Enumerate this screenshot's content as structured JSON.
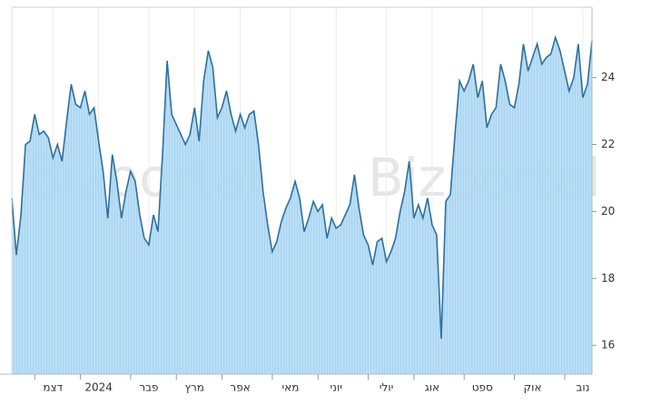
{
  "chart_data": {
    "type": "area",
    "watermark": "Bizportal",
    "categories": [
      null,
      null,
      null,
      null,
      null,
      null,
      null,
      null,
      null,
      "דצמ",
      null,
      null,
      null,
      null,
      null,
      null,
      null,
      null,
      null,
      "2024",
      null,
      null,
      null,
      null,
      null,
      null,
      null,
      null,
      null,
      null,
      "פבר",
      null,
      null,
      null,
      null,
      null,
      null,
      null,
      null,
      null,
      "מרץ",
      null,
      null,
      null,
      null,
      null,
      null,
      null,
      null,
      null,
      "אפר",
      null,
      null,
      null,
      null,
      null,
      null,
      null,
      null,
      null,
      null,
      "מאי",
      null,
      null,
      null,
      null,
      null,
      null,
      null,
      null,
      null,
      "יוני",
      null,
      null,
      null,
      null,
      null,
      null,
      null,
      null,
      null,
      null,
      "יולי",
      null,
      null,
      null,
      null,
      null,
      null,
      null,
      null,
      null,
      "אוג",
      null,
      null,
      null,
      null,
      null,
      null,
      null,
      null,
      null,
      null,
      "ספט",
      null,
      null,
      null,
      null,
      null,
      null,
      null,
      null,
      null,
      null,
      "אוק",
      null,
      null,
      null,
      null,
      null,
      null,
      null,
      null,
      null,
      null,
      "נוב",
      null,
      null
    ],
    "values": [
      20.4,
      18.7,
      19.9,
      22.0,
      22.1,
      22.9,
      22.3,
      22.4,
      22.2,
      21.6,
      22.0,
      21.5,
      22.7,
      23.8,
      23.2,
      23.1,
      23.6,
      22.9,
      23.1,
      22.1,
      21.2,
      19.8,
      21.7,
      20.9,
      19.8,
      20.6,
      21.2,
      20.9,
      19.9,
      19.2,
      19.0,
      19.9,
      19.4,
      21.7,
      24.5,
      22.9,
      22.6,
      22.3,
      22.0,
      22.3,
      23.1,
      22.1,
      23.9,
      24.8,
      24.3,
      22.8,
      23.1,
      23.6,
      22.9,
      22.4,
      22.9,
      22.5,
      22.9,
      23.0,
      22.0,
      20.6,
      19.6,
      18.8,
      19.1,
      19.7,
      20.1,
      20.4,
      20.9,
      20.4,
      19.4,
      19.8,
      20.3,
      20.0,
      20.2,
      19.2,
      19.8,
      19.5,
      19.6,
      19.9,
      20.2,
      21.1,
      20.1,
      19.3,
      19.0,
      18.4,
      19.1,
      19.2,
      18.5,
      18.8,
      19.2,
      20.0,
      20.6,
      21.5,
      19.8,
      20.2,
      19.8,
      20.4,
      19.6,
      19.3,
      16.2,
      20.3,
      20.5,
      22.3,
      23.9,
      23.6,
      23.9,
      24.4,
      23.4,
      23.9,
      22.5,
      22.9,
      23.1,
      24.4,
      23.9,
      23.2,
      23.1,
      23.8,
      25.0,
      24.2,
      24.6,
      25.0,
      24.4,
      24.6,
      24.7,
      25.2,
      24.8,
      24.2,
      23.6,
      24.0,
      25.0,
      23.4,
      23.8,
      25.1
    ],
    "color": "#2f6f9f",
    "area_color": "#b5dcf4",
    "ylim": [
      15.14,
      26.1
    ],
    "yticks": [
      16,
      18,
      20,
      22,
      24
    ],
    "grid": true
  }
}
